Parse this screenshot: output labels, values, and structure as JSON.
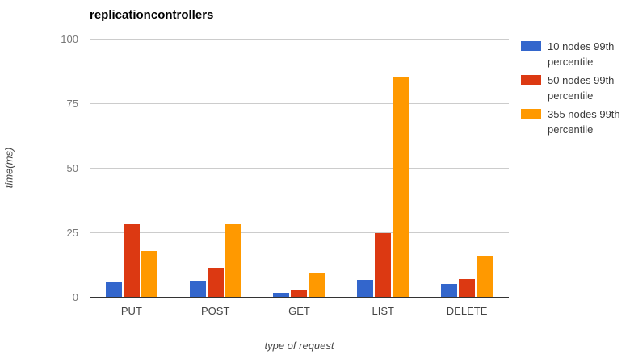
{
  "title": "replicationcontrollers",
  "chart_data": {
    "type": "bar",
    "title": "replicationcontrollers",
    "xlabel": "type of request",
    "ylabel": "time(ms)",
    "categories": [
      "PUT",
      "POST",
      "GET",
      "LIST",
      "DELETE"
    ],
    "series": [
      {
        "name": "10 nodes 99th percentile",
        "color": "#3366CC",
        "values": [
          6.3,
          6.7,
          1.8,
          7.0,
          5.4
        ]
      },
      {
        "name": "50 nodes 99th percentile",
        "color": "#DC3912",
        "values": [
          28.5,
          11.5,
          3.2,
          25.0,
          7.3
        ]
      },
      {
        "name": "355 nodes 99th percentile",
        "color": "#FF9900",
        "values": [
          18.2,
          28.4,
          9.4,
          85.5,
          16.4
        ]
      }
    ],
    "ylim": [
      0,
      100
    ],
    "yticks": [
      0,
      25,
      50,
      75,
      100
    ],
    "grid": true,
    "legend_position": "right"
  },
  "colors": {
    "background": "#FFFFFF",
    "gridline": "#CCCCCC",
    "axis_line": "#333333",
    "tick_label": "#777777",
    "category_label": "#444444",
    "title": "#000000"
  }
}
